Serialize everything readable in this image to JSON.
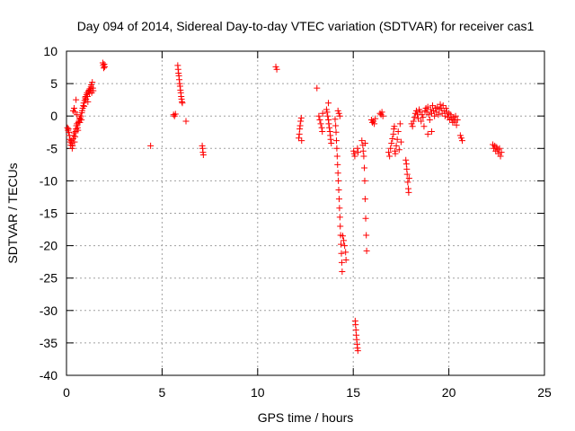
{
  "chart_data": {
    "type": "scatter",
    "title": "Day 094 of 2014, Sidereal Day-to-day VTEC variation (SDTVAR) for receiver cas1",
    "xlabel": "GPS time / hours",
    "ylabel": "SDTVAR / TECUs",
    "xlim": [
      0,
      25
    ],
    "ylim": [
      -40,
      10
    ],
    "xticks": [
      0,
      5,
      10,
      15,
      20,
      25
    ],
    "yticks": [
      10,
      5,
      0,
      -5,
      -10,
      -15,
      -20,
      -25,
      -30,
      -35,
      -40
    ],
    "xtick_labels": [
      "0",
      "5",
      "10",
      "15",
      "20",
      "25"
    ],
    "ytick_labels": [
      "10",
      "5",
      "0",
      "-5",
      "-10",
      "-15",
      "-20",
      "-25",
      "-30",
      "-35",
      "-40"
    ],
    "grid": true,
    "marker": "+",
    "color": "#ff0000",
    "series": [
      {
        "name": "SDTVAR",
        "points": [
          [
            0.05,
            -1.8
          ],
          [
            0.08,
            -2.2
          ],
          [
            0.1,
            -2.0
          ],
          [
            0.12,
            -2.5
          ],
          [
            0.15,
            -3.0
          ],
          [
            0.18,
            -3.6
          ],
          [
            0.2,
            -4.0
          ],
          [
            0.22,
            -4.5
          ],
          [
            0.25,
            -3.8
          ],
          [
            0.28,
            -4.2
          ],
          [
            0.3,
            -5.0
          ],
          [
            0.32,
            -4.6
          ],
          [
            0.35,
            -3.5
          ],
          [
            0.38,
            -3.0
          ],
          [
            0.4,
            -2.6
          ],
          [
            0.42,
            -4.0
          ],
          [
            0.45,
            -3.2
          ],
          [
            0.48,
            -2.4
          ],
          [
            0.5,
            -2.0
          ],
          [
            0.52,
            -1.5
          ],
          [
            0.55,
            -1.2
          ],
          [
            0.58,
            -1.8
          ],
          [
            0.6,
            -2.2
          ],
          [
            0.62,
            -1.0
          ],
          [
            0.65,
            -0.8
          ],
          [
            0.68,
            -0.5
          ],
          [
            0.7,
            -1.0
          ],
          [
            0.72,
            -0.3
          ],
          [
            0.75,
            0.0
          ],
          [
            0.78,
            -0.6
          ],
          [
            0.8,
            0.5
          ],
          [
            0.82,
            0.8
          ],
          [
            0.85,
            1.2
          ],
          [
            0.88,
            1.6
          ],
          [
            0.9,
            2.0
          ],
          [
            0.92,
            1.5
          ],
          [
            0.95,
            2.4
          ],
          [
            0.98,
            2.8
          ],
          [
            1.0,
            3.0
          ],
          [
            1.02,
            2.6
          ],
          [
            1.05,
            3.3
          ],
          [
            1.08,
            3.6
          ],
          [
            1.1,
            3.0
          ],
          [
            1.12,
            2.2
          ],
          [
            1.15,
            3.8
          ],
          [
            1.18,
            4.0
          ],
          [
            1.2,
            3.5
          ],
          [
            1.22,
            4.2
          ],
          [
            1.25,
            3.9
          ],
          [
            1.28,
            4.5
          ],
          [
            1.3,
            4.8
          ],
          [
            1.32,
            3.6
          ],
          [
            1.35,
            5.2
          ],
          [
            1.38,
            4.3
          ],
          [
            1.4,
            3.9
          ],
          [
            0.35,
            0.8
          ],
          [
            0.4,
            1.2
          ],
          [
            0.45,
            0.6
          ],
          [
            0.5,
            2.5
          ],
          [
            0.55,
            0.2
          ],
          [
            1.9,
            8.2
          ],
          [
            1.92,
            7.8
          ],
          [
            1.95,
            7.4
          ],
          [
            1.97,
            8.0
          ],
          [
            2.0,
            7.6
          ],
          [
            4.4,
            -4.6
          ],
          [
            5.6,
            0.2
          ],
          [
            5.65,
            0.0
          ],
          [
            5.7,
            0.3
          ],
          [
            5.82,
            7.8
          ],
          [
            5.84,
            7.2
          ],
          [
            5.86,
            6.6
          ],
          [
            5.88,
            6.2
          ],
          [
            5.9,
            5.6
          ],
          [
            5.92,
            5.0
          ],
          [
            5.94,
            4.6
          ],
          [
            5.96,
            4.0
          ],
          [
            5.98,
            3.6
          ],
          [
            6.0,
            3.0
          ],
          [
            6.02,
            2.6
          ],
          [
            6.04,
            2.2
          ],
          [
            6.06,
            2.0
          ],
          [
            6.25,
            -0.8
          ],
          [
            7.1,
            -4.6
          ],
          [
            7.12,
            -5.0
          ],
          [
            7.14,
            -5.6
          ],
          [
            7.16,
            -6.0
          ],
          [
            10.95,
            7.6
          ],
          [
            11.0,
            7.2
          ],
          [
            12.15,
            -3.4
          ],
          [
            12.18,
            -2.8
          ],
          [
            12.2,
            -2.0
          ],
          [
            12.22,
            -1.5
          ],
          [
            12.25,
            -0.8
          ],
          [
            12.28,
            -0.3
          ],
          [
            12.3,
            -3.8
          ],
          [
            13.1,
            4.3
          ],
          [
            13.2,
            0.0
          ],
          [
            13.25,
            -0.6
          ],
          [
            13.3,
            -1.2
          ],
          [
            13.35,
            -1.8
          ],
          [
            13.38,
            -2.4
          ],
          [
            13.4,
            0.4
          ],
          [
            13.6,
            1.0
          ],
          [
            13.63,
            0.6
          ],
          [
            13.66,
            0.0
          ],
          [
            13.7,
            -0.6
          ],
          [
            13.72,
            -1.2
          ],
          [
            13.75,
            -1.8
          ],
          [
            13.78,
            -2.4
          ],
          [
            13.8,
            -3.0
          ],
          [
            13.82,
            -3.6
          ],
          [
            13.85,
            -4.2
          ],
          [
            13.7,
            2.0
          ],
          [
            14.05,
            -0.5
          ],
          [
            14.08,
            -1.5
          ],
          [
            14.1,
            -2.5
          ],
          [
            14.12,
            -3.8
          ],
          [
            14.14,
            -5.0
          ],
          [
            14.16,
            -6.2
          ],
          [
            14.18,
            -7.5
          ],
          [
            14.2,
            -8.8
          ],
          [
            14.22,
            -10.0
          ],
          [
            14.24,
            -11.4
          ],
          [
            14.26,
            -12.8
          ],
          [
            14.28,
            -14.2
          ],
          [
            14.3,
            -15.6
          ],
          [
            14.32,
            -17.0
          ],
          [
            14.34,
            -18.4
          ],
          [
            14.36,
            -19.8
          ],
          [
            14.38,
            -21.2
          ],
          [
            14.4,
            -22.6
          ],
          [
            14.42,
            -24.0
          ],
          [
            14.2,
            0.8
          ],
          [
            14.25,
            0.4
          ],
          [
            14.3,
            0.0
          ],
          [
            14.45,
            -18.5
          ],
          [
            14.5,
            -19.2
          ],
          [
            14.55,
            -20.0
          ],
          [
            14.6,
            -21.0
          ],
          [
            14.62,
            -22.2
          ],
          [
            15.02,
            -5.4
          ],
          [
            15.05,
            -5.8
          ],
          [
            15.08,
            -6.2
          ],
          [
            15.1,
            -31.6
          ],
          [
            15.12,
            -32.2
          ],
          [
            15.14,
            -33.0
          ],
          [
            15.16,
            -33.8
          ],
          [
            15.18,
            -34.5
          ],
          [
            15.2,
            -35.2
          ],
          [
            15.22,
            -35.8
          ],
          [
            15.24,
            -36.2
          ],
          [
            15.25,
            -5.6
          ],
          [
            15.22,
            -5.0
          ],
          [
            15.45,
            -3.8
          ],
          [
            15.5,
            -4.5
          ],
          [
            15.52,
            -5.4
          ],
          [
            15.55,
            -6.2
          ],
          [
            15.58,
            -8.0
          ],
          [
            15.6,
            -10.0
          ],
          [
            15.62,
            -12.8
          ],
          [
            15.65,
            -15.8
          ],
          [
            15.68,
            -18.4
          ],
          [
            15.7,
            -20.8
          ],
          [
            15.62,
            -4.2
          ],
          [
            15.95,
            -0.6
          ],
          [
            16.0,
            -1.0
          ],
          [
            16.05,
            -0.8
          ],
          [
            16.1,
            -1.2
          ],
          [
            16.15,
            -0.4
          ],
          [
            16.4,
            0.4
          ],
          [
            16.45,
            0.2
          ],
          [
            16.5,
            0.6
          ],
          [
            16.55,
            0.0
          ],
          [
            16.85,
            -5.6
          ],
          [
            16.9,
            -6.2
          ],
          [
            16.95,
            -5.0
          ],
          [
            17.0,
            -4.2
          ],
          [
            17.05,
            -3.5
          ],
          [
            17.1,
            -2.8
          ],
          [
            17.12,
            -2.0
          ],
          [
            17.15,
            -1.6
          ],
          [
            17.18,
            -5.4
          ],
          [
            17.2,
            -5.8
          ],
          [
            17.25,
            -4.6
          ],
          [
            17.3,
            -3.6
          ],
          [
            17.35,
            -2.4
          ],
          [
            17.4,
            -5.2
          ],
          [
            17.45,
            -1.2
          ],
          [
            17.5,
            -4.0
          ],
          [
            17.75,
            -6.8
          ],
          [
            17.78,
            -7.4
          ],
          [
            17.8,
            -8.2
          ],
          [
            17.82,
            -9.0
          ],
          [
            17.85,
            -10.2
          ],
          [
            17.88,
            -11.2
          ],
          [
            17.9,
            -11.8
          ],
          [
            17.92,
            -9.6
          ],
          [
            18.05,
            -1.2
          ],
          [
            18.1,
            -1.6
          ],
          [
            18.15,
            -0.8
          ],
          [
            18.2,
            -0.2
          ],
          [
            18.25,
            0.4
          ],
          [
            18.3,
            0.8
          ],
          [
            18.35,
            0.2
          ],
          [
            18.4,
            -0.4
          ],
          [
            18.45,
            1.0
          ],
          [
            18.5,
            0.6
          ],
          [
            18.55,
            -0.8
          ],
          [
            18.6,
            0.2
          ],
          [
            18.65,
            -0.2
          ],
          [
            18.7,
            -1.6
          ],
          [
            18.75,
            0.8
          ],
          [
            18.8,
            1.2
          ],
          [
            18.85,
            0.6
          ],
          [
            18.9,
            1.4
          ],
          [
            18.95,
            0.2
          ],
          [
            19.0,
            -0.6
          ],
          [
            19.05,
            1.0
          ],
          [
            19.1,
            0.4
          ],
          [
            19.15,
            1.6
          ],
          [
            19.2,
            0.8
          ],
          [
            19.25,
            0.0
          ],
          [
            19.3,
            1.2
          ],
          [
            19.35,
            0.6
          ],
          [
            19.4,
            1.4
          ],
          [
            19.45,
            0.2
          ],
          [
            19.5,
            1.0
          ],
          [
            19.55,
            1.8
          ],
          [
            19.6,
            1.2
          ],
          [
            19.65,
            0.4
          ],
          [
            19.7,
            1.6
          ],
          [
            19.75,
            0.8
          ],
          [
            19.8,
            0.0
          ],
          [
            19.85,
            1.2
          ],
          [
            19.9,
            0.6
          ],
          [
            19.95,
            -0.2
          ],
          [
            20.0,
            0.4
          ],
          [
            20.05,
            -0.6
          ],
          [
            20.1,
            0.2
          ],
          [
            20.15,
            -0.4
          ],
          [
            20.2,
            -1.0
          ],
          [
            20.25,
            -0.2
          ],
          [
            20.3,
            -0.8
          ],
          [
            20.35,
            0.0
          ],
          [
            20.4,
            -1.4
          ],
          [
            20.45,
            -0.6
          ],
          [
            18.9,
            -2.8
          ],
          [
            19.1,
            -2.4
          ],
          [
            20.6,
            -3.0
          ],
          [
            20.65,
            -3.4
          ],
          [
            20.7,
            -3.8
          ],
          [
            22.3,
            -4.4
          ],
          [
            22.35,
            -5.0
          ],
          [
            22.4,
            -4.6
          ],
          [
            22.45,
            -5.4
          ],
          [
            22.5,
            -4.8
          ],
          [
            22.55,
            -5.2
          ],
          [
            22.6,
            -5.8
          ],
          [
            22.65,
            -5.0
          ],
          [
            22.7,
            -6.2
          ],
          [
            22.75,
            -5.6
          ]
        ]
      }
    ]
  }
}
